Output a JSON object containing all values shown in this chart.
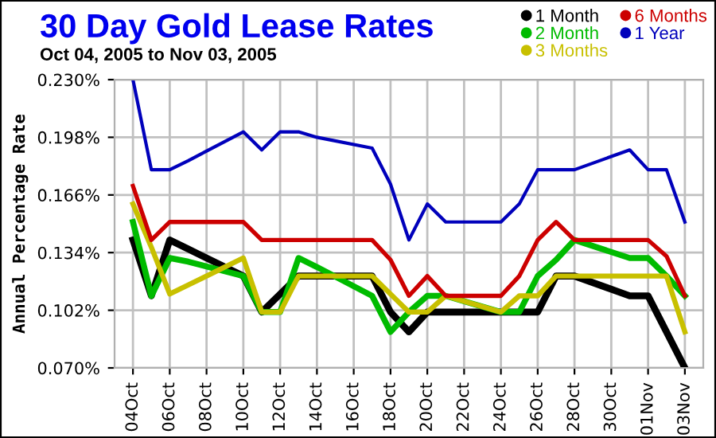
{
  "chart_data": {
    "type": "line",
    "title": "30 Day Gold Lease Rates",
    "subtitle": "Oct 04, 2005 to Nov 03, 2005",
    "ylabel": "Annual Percentage Rate",
    "x": [
      "2005-10-04",
      "2005-10-05",
      "2005-10-06",
      "2005-10-07",
      "2005-10-10",
      "2005-10-11",
      "2005-10-12",
      "2005-10-13",
      "2005-10-14",
      "2005-10-17",
      "2005-10-18",
      "2005-10-19",
      "2005-10-20",
      "2005-10-21",
      "2005-10-24",
      "2005-10-25",
      "2005-10-26",
      "2005-10-27",
      "2005-10-28",
      "2005-10-31",
      "2005-11-01",
      "2005-11-02",
      "2005-11-03"
    ],
    "series": [
      {
        "name": "1 Month",
        "color": "#000000",
        "values": [
          0.141,
          0.11,
          0.141,
          0.136,
          0.121,
          0.101,
          0.111,
          0.121,
          0.121,
          0.121,
          0.101,
          0.09,
          0.101,
          0.101,
          0.101,
          0.101,
          0.101,
          0.121,
          0.121,
          0.11,
          0.11,
          0.09,
          0.07
        ]
      },
      {
        "name": "2 Month",
        "color": "#00bb00",
        "values": [
          0.151,
          0.11,
          0.131,
          0.129,
          0.121,
          0.101,
          0.101,
          0.131,
          0.126,
          0.11,
          0.09,
          0.101,
          0.11,
          0.11,
          0.101,
          0.101,
          0.121,
          0.13,
          0.141,
          0.131,
          0.131,
          0.121,
          0.11
        ]
      },
      {
        "name": "3 Months",
        "color": "#c8c000",
        "values": [
          0.161,
          0.137,
          0.111,
          0.116,
          0.131,
          0.101,
          0.101,
          0.121,
          0.121,
          0.121,
          0.111,
          0.101,
          0.101,
          0.11,
          0.101,
          0.11,
          0.11,
          0.121,
          0.121,
          0.121,
          0.121,
          0.121,
          0.09
        ]
      },
      {
        "name": "6 Months",
        "color": "#cc0000",
        "values": [
          0.171,
          0.141,
          0.151,
          0.151,
          0.151,
          0.141,
          0.141,
          0.141,
          0.141,
          0.141,
          0.13,
          0.11,
          0.121,
          0.11,
          0.11,
          0.121,
          0.141,
          0.151,
          0.141,
          0.141,
          0.141,
          0.132,
          0.11
        ]
      },
      {
        "name": "1 Year",
        "color": "#0000bb",
        "values": [
          0.23,
          0.18,
          0.18,
          0.185,
          0.201,
          0.191,
          0.201,
          0.201,
          0.198,
          0.192,
          0.172,
          0.141,
          0.161,
          0.151,
          0.151,
          0.161,
          0.18,
          0.18,
          0.18,
          0.191,
          0.18,
          0.18,
          0.151
        ]
      }
    ],
    "xlim": [
      "2005-10-03",
      "2005-11-04"
    ],
    "xticks": [
      {
        "value": "2005-10-04",
        "label": "04Oct"
      },
      {
        "value": "2005-10-06",
        "label": "06Oct"
      },
      {
        "value": "2005-10-08",
        "label": "08Oct"
      },
      {
        "value": "2005-10-10",
        "label": "10Oct"
      },
      {
        "value": "2005-10-12",
        "label": "12Oct"
      },
      {
        "value": "2005-10-14",
        "label": "14Oct"
      },
      {
        "value": "2005-10-16",
        "label": "16Oct"
      },
      {
        "value": "2005-10-18",
        "label": "18Oct"
      },
      {
        "value": "2005-10-20",
        "label": "20Oct"
      },
      {
        "value": "2005-10-22",
        "label": "22Oct"
      },
      {
        "value": "2005-10-24",
        "label": "24Oct"
      },
      {
        "value": "2005-10-26",
        "label": "26Oct"
      },
      {
        "value": "2005-10-28",
        "label": "28Oct"
      },
      {
        "value": "2005-10-30",
        "label": "30Oct"
      },
      {
        "value": "2005-11-01",
        "label": "01Nov"
      },
      {
        "value": "2005-11-03",
        "label": "03Nov"
      }
    ],
    "ylim": [
      0.07,
      0.23
    ],
    "yticks": [
      {
        "value": 0.07,
        "label": "0.070%"
      },
      {
        "value": 0.102,
        "label": "0.102%"
      },
      {
        "value": 0.134,
        "label": "0.134%"
      },
      {
        "value": 0.166,
        "label": "0.166%"
      },
      {
        "value": 0.198,
        "label": "0.198%"
      },
      {
        "value": 0.23,
        "label": "0.230%"
      }
    ],
    "grid": true,
    "legend": "top right",
    "marker": "none",
    "line_style": "solid"
  }
}
